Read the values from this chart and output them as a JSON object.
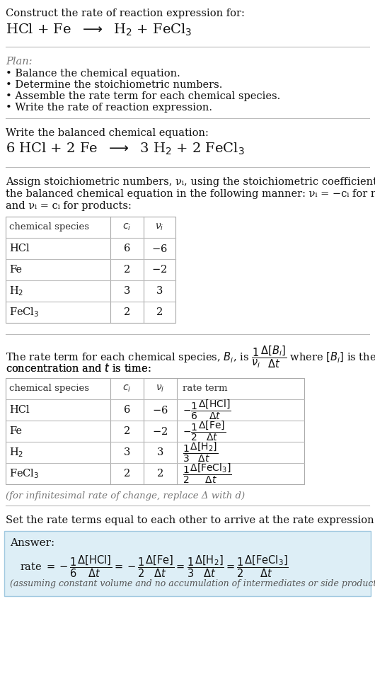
{
  "bg_color": "#ffffff",
  "gray_text": "#888888",
  "answer_bg": "#ddeef6",
  "answer_border": "#a0c8e0",
  "title_line1": "Construct the rate of reaction expression for:",
  "plan_title": "Plan:",
  "plan_items": [
    "• Balance the chemical equation.",
    "• Determine the stoichiometric numbers.",
    "• Assemble the rate term for each chemical species.",
    "• Write the rate of reaction expression."
  ],
  "balanced_label": "Write the balanced chemical equation:",
  "assign_lines": [
    "Assign stoichiometric numbers, νᵢ, using the stoichiometric coefficients, cᵢ, from",
    "the balanced chemical equation in the following manner: νᵢ = −cᵢ for reactants",
    "and νᵢ = cᵢ for products:"
  ],
  "table1_header": [
    "chemical species",
    "cᵢ",
    "νᵢ"
  ],
  "table1_rows": [
    [
      "HCl",
      "6",
      "−6"
    ],
    [
      "Fe",
      "2",
      "−2"
    ],
    [
      "H₂",
      "3",
      "3"
    ],
    [
      "FeCl₃",
      "2",
      "2"
    ]
  ],
  "rate_line1": "The rate term for each chemical species, Bᵢ, is",
  "rate_line2": "concentration and t is time:",
  "table2_header": [
    "chemical species",
    "cᵢ",
    "νᵢ",
    "rate term"
  ],
  "table2_rows": [
    [
      "HCl",
      "6",
      "−6"
    ],
    [
      "Fe",
      "2",
      "−2"
    ],
    [
      "H₂",
      "3",
      "3"
    ],
    [
      "FeCl₃",
      "2",
      "2"
    ]
  ],
  "delta_note": "(for infinitesimal rate of change, replace Δ with d)",
  "set_equal_text": "Set the rate terms equal to each other to arrive at the rate expression:",
  "answer_label": "Answer:",
  "footnote": "(assuming constant volume and no accumulation of intermediates or side products)"
}
